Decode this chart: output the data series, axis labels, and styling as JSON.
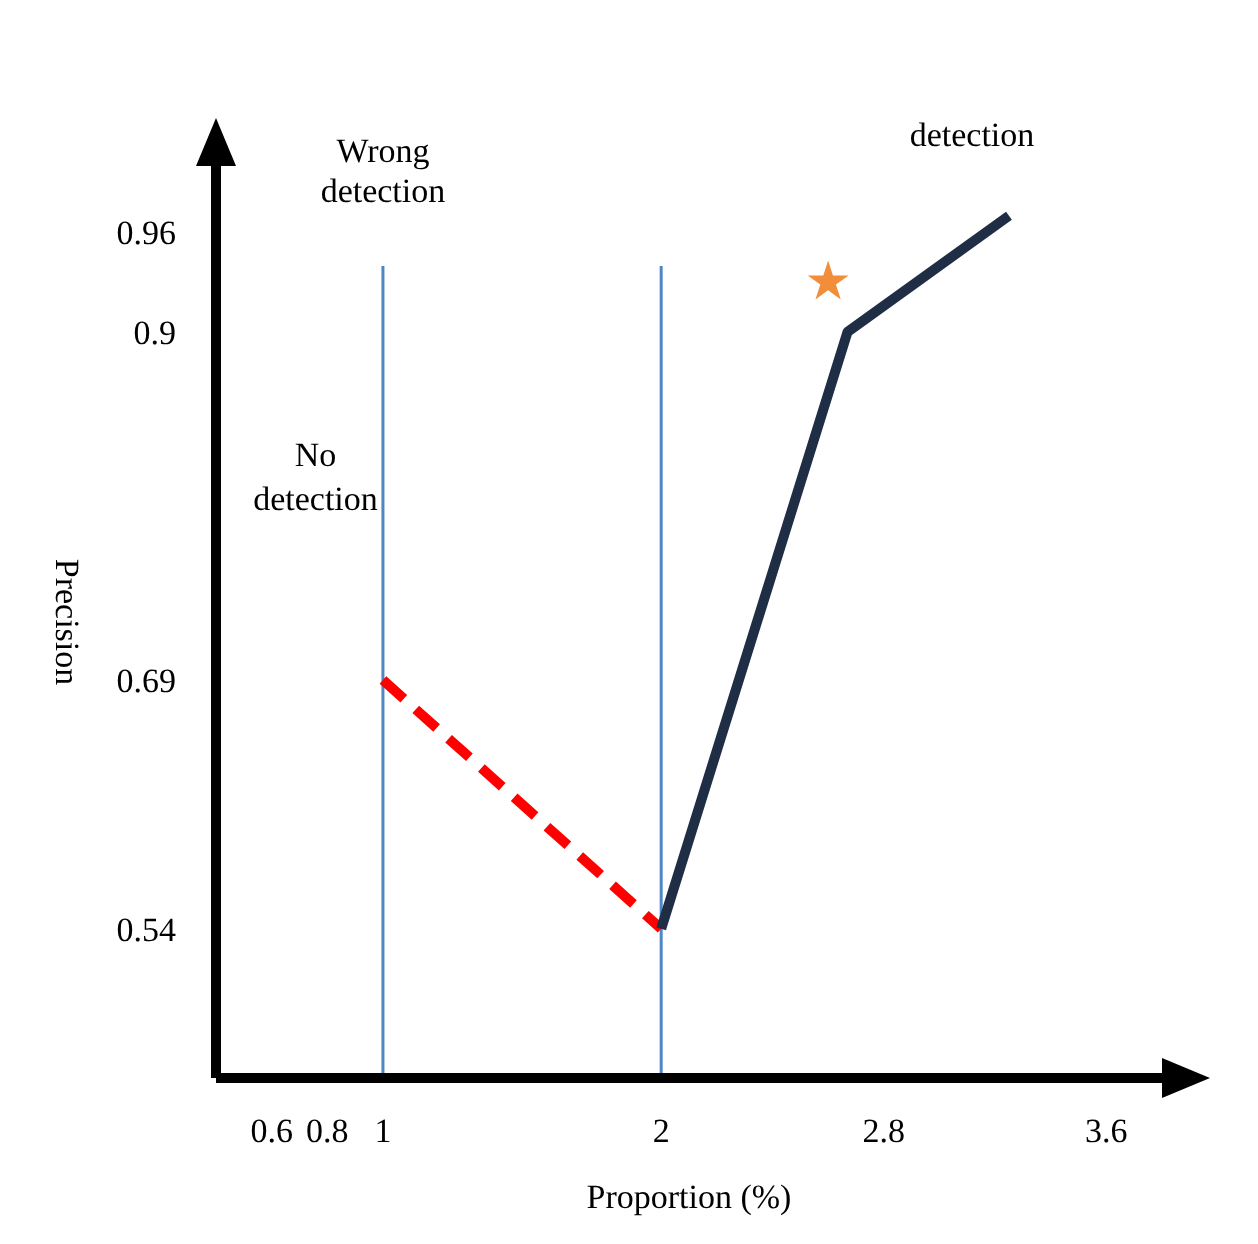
{
  "chart_data": {
    "type": "line",
    "xlabel": "Proportion (%)",
    "ylabel": "Precision",
    "xlim": [
      0.4,
      3.8
    ],
    "xticks": [
      0.6,
      0.8,
      1,
      2,
      2.8,
      3.6
    ],
    "ylim": [
      0.45,
      1.0
    ],
    "yticks": [
      0.54,
      0.69,
      0.9,
      0.96
    ],
    "grid": false,
    "series": [
      {
        "x": [
          1,
          2
        ],
        "values": [
          0.69,
          0.54
        ],
        "color": "#ff0000",
        "line_style": "dashed",
        "marker": "none"
      },
      {
        "x": [
          2,
          2.67,
          3.25
        ],
        "values": [
          0.54,
          0.9,
          0.97
        ],
        "color": "#1f2d45",
        "line_style": "solid",
        "marker": "none"
      },
      {
        "type": "scatter",
        "x": [
          2.6
        ],
        "values": [
          0.93
        ],
        "color": "#f28e3a",
        "marker": "star"
      }
    ],
    "ref_lines": [
      {
        "axis": "x",
        "value": 1,
        "label": "Wrong detection",
        "color": "#4f86c6"
      },
      {
        "axis": "x",
        "value": 2,
        "color": "#4f86c6"
      }
    ],
    "annotations": [
      "No detection",
      "detection"
    ]
  }
}
